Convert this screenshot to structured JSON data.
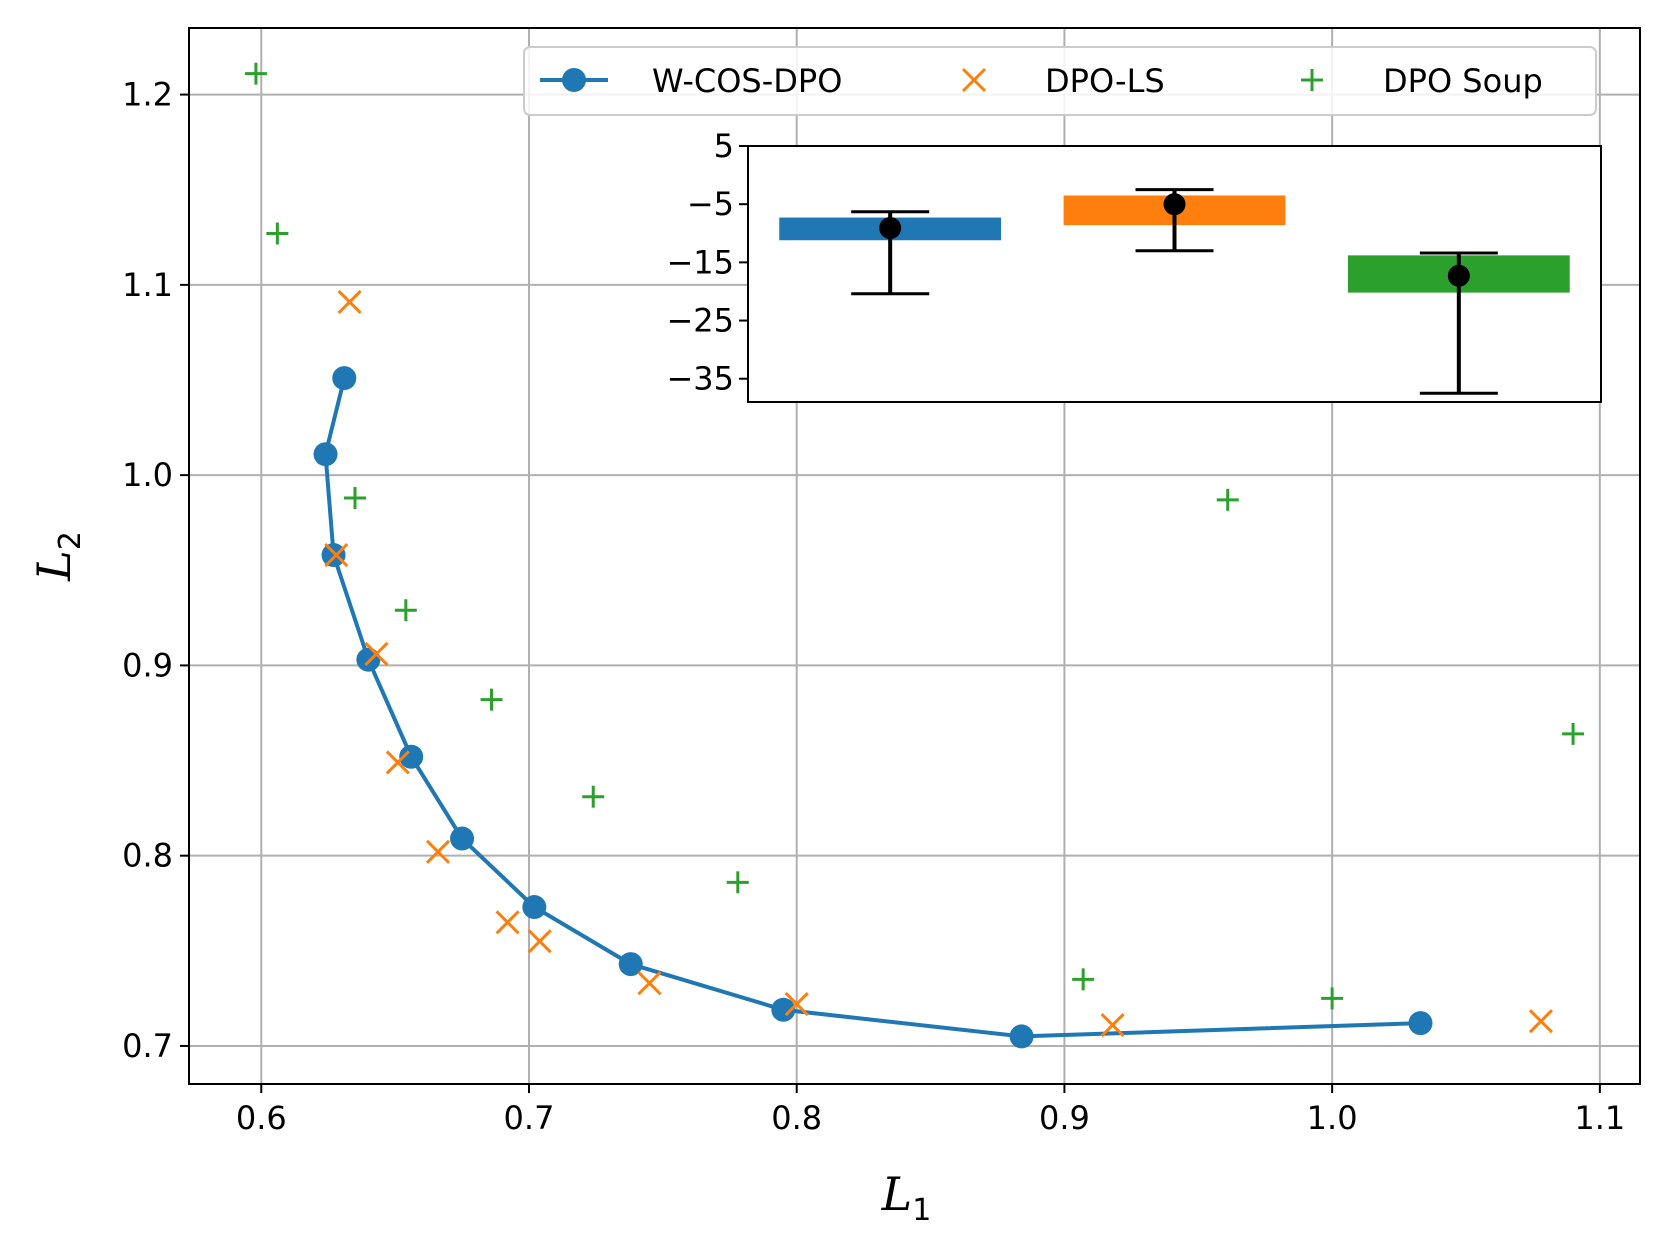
{
  "chart_data": [
    {
      "type": "line+scatter",
      "title": "",
      "xlabel": "L",
      "xlabel_sub": "1",
      "ylabel": "L",
      "ylabel_sub": "2",
      "xlim": [
        0.573,
        1.115
      ],
      "ylim": [
        0.68,
        1.235
      ],
      "xticks": [
        0.6,
        0.7,
        0.8,
        0.9,
        1.0,
        1.1
      ],
      "xtick_labels": [
        "0.6",
        "0.7",
        "0.8",
        "0.9",
        "1.0",
        "1.1"
      ],
      "yticks": [
        0.7,
        0.8,
        0.9,
        1.0,
        1.1,
        1.2
      ],
      "ytick_labels": [
        "0.7",
        "0.8",
        "0.9",
        "1.0",
        "1.1",
        "1.2"
      ],
      "grid": true,
      "legend_position": "top-right",
      "series": [
        {
          "name": "W-COS-DPO",
          "marker": "circle-line",
          "color": "#1f77b4",
          "points": [
            [
              0.631,
              1.051
            ],
            [
              0.624,
              1.011
            ],
            [
              0.627,
              0.958
            ],
            [
              0.64,
              0.903
            ],
            [
              0.656,
              0.852
            ],
            [
              0.675,
              0.809
            ],
            [
              0.702,
              0.773
            ],
            [
              0.738,
              0.743
            ],
            [
              0.795,
              0.719
            ],
            [
              0.884,
              0.705
            ],
            [
              1.033,
              0.712
            ]
          ]
        },
        {
          "name": "DPO-LS",
          "marker": "x",
          "color": "#ff7f0e",
          "points": [
            [
              0.633,
              1.091
            ],
            [
              0.628,
              0.958
            ],
            [
              0.643,
              0.906
            ],
            [
              0.651,
              0.849
            ],
            [
              0.666,
              0.802
            ],
            [
              0.692,
              0.765
            ],
            [
              0.704,
              0.755
            ],
            [
              0.745,
              0.733
            ],
            [
              0.8,
              0.722
            ],
            [
              0.918,
              0.711
            ],
            [
              1.078,
              0.713
            ]
          ]
        },
        {
          "name": "DPO Soup",
          "marker": "plus",
          "color": "#2ca02c",
          "points": [
            [
              0.598,
              1.211
            ],
            [
              0.606,
              1.127
            ],
            [
              0.635,
              0.988
            ],
            [
              0.654,
              0.929
            ],
            [
              0.686,
              0.882
            ],
            [
              0.724,
              0.831
            ],
            [
              0.778,
              0.786
            ],
            [
              0.907,
              0.735
            ],
            [
              0.961,
              0.987
            ],
            [
              1.0,
              0.725
            ],
            [
              1.09,
              0.864
            ]
          ]
        }
      ]
    },
    {
      "type": "bar",
      "inset": true,
      "ylim": [
        -39,
        5
      ],
      "yticks": [
        5,
        -5,
        -15,
        -25,
        -35
      ],
      "ytick_labels": [
        "5",
        "−5",
        "−15",
        "−25",
        "−35"
      ],
      "bars": [
        {
          "name": "W-COS-DPO",
          "color": "#1f77b4",
          "box_low": -11.2,
          "box_high": -7.3,
          "mean": -9.1,
          "whisker_low": -20.4,
          "whisker_high": -6.3
        },
        {
          "name": "DPO-LS",
          "color": "#ff7f0e",
          "box_low": -8.6,
          "box_high": -3.5,
          "mean": -5.0,
          "whisker_low": -13.0,
          "whisker_high": -2.5
        },
        {
          "name": "DPO Soup",
          "color": "#2ca02c",
          "box_low": -20.2,
          "box_high": -13.8,
          "mean": -17.3,
          "whisker_low": -37.5,
          "whisker_high": -13.4
        }
      ]
    }
  ]
}
